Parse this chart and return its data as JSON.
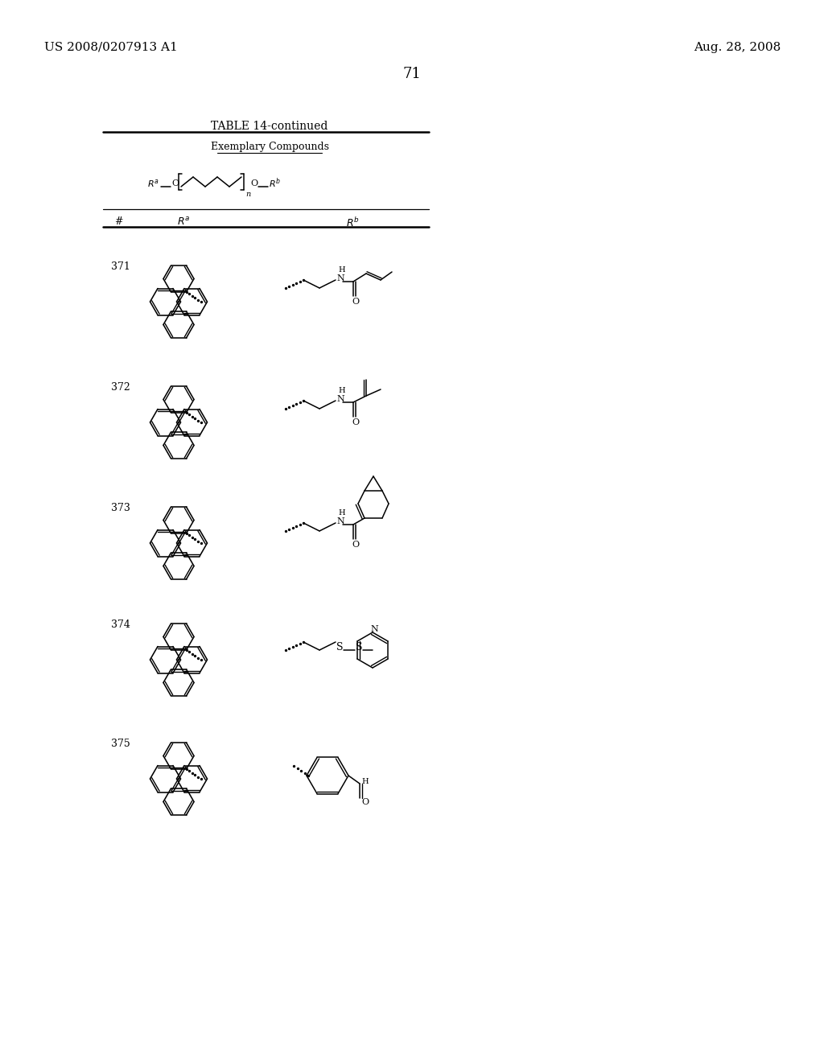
{
  "bg_color": "#ffffff",
  "header_left": "US 2008/0207913 A1",
  "header_right": "Aug. 28, 2008",
  "page_number": "71",
  "table_title": "TABLE 14-continued",
  "col_header": "Exemplary Compounds",
  "row_numbers": [
    "371",
    "372",
    "373",
    "374",
    "375"
  ],
  "text_color": "#000000"
}
